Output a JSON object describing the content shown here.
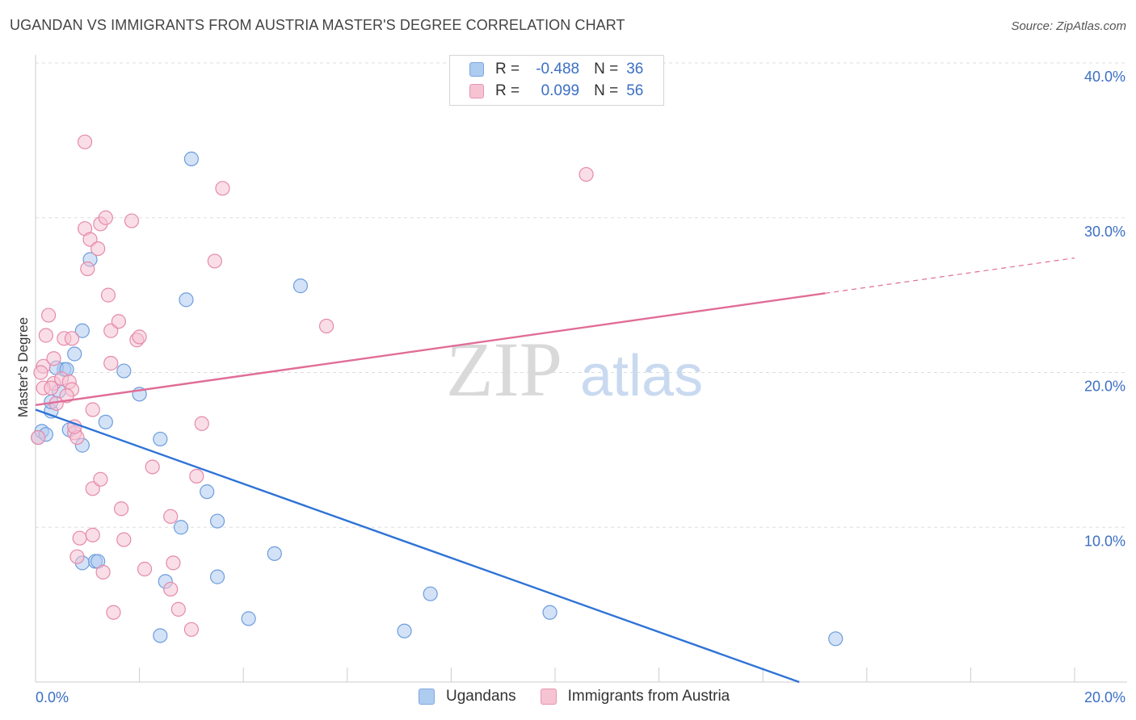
{
  "title": "UGANDAN VS IMMIGRANTS FROM AUSTRIA MASTER'S DEGREE CORRELATION CHART",
  "source": "Source: ZipAtlas.com",
  "watermark": {
    "zip": "ZIP",
    "atlas": "atlas"
  },
  "legend": {
    "rows": [
      {
        "r_label": "R =",
        "r_value": "-0.488",
        "n_label": "N =",
        "n_value": "36",
        "color": "#aecbf0",
        "border": "#7ea8e0"
      },
      {
        "r_label": "R =",
        "r_value": "0.099",
        "n_label": "N =",
        "n_value": "56",
        "color": "#f6c3d3",
        "border": "#e895b2"
      }
    ]
  },
  "colors": {
    "blue_fill": "#aecbf0",
    "blue_stroke": "#6d9ddd",
    "blue_line": "#2f73d6",
    "pink_fill": "#f6c3d3",
    "pink_stroke": "#e58aaa",
    "pink_line": "#e06d97",
    "tick_label": "#3b6fc4",
    "grid": "#dddddd"
  },
  "chart_data": {
    "type": "scatter",
    "title": "UGANDAN VS IMMIGRANTS FROM AUSTRIA MASTER'S DEGREE CORRELATION CHART",
    "xlabel": "",
    "ylabel": "Master's Degree",
    "xlim": [
      0,
      20
    ],
    "ylim": [
      0,
      40
    ],
    "x_tick_labels": [
      "0.0%",
      "20.0%"
    ],
    "y_tick_labels": [
      "10.0%",
      "20.0%",
      "30.0%",
      "40.0%"
    ],
    "y_tick_values": [
      10,
      20,
      30,
      40
    ],
    "grid": true,
    "series": [
      {
        "name": "Ugandans",
        "points": [
          [
            0.05,
            15.8
          ],
          [
            0.12,
            16.2
          ],
          [
            0.3,
            17.5
          ],
          [
            0.3,
            18.1
          ],
          [
            0.45,
            18.8
          ],
          [
            0.55,
            20.2
          ],
          [
            0.65,
            16.3
          ],
          [
            0.75,
            21.2
          ],
          [
            0.9,
            22.7
          ],
          [
            1.05,
            27.3
          ],
          [
            1.15,
            7.8
          ],
          [
            1.35,
            16.8
          ],
          [
            0.9,
            15.3
          ],
          [
            1.7,
            20.1
          ],
          [
            2.0,
            18.6
          ],
          [
            2.4,
            15.7
          ],
          [
            2.4,
            3.0
          ],
          [
            2.8,
            10.0
          ],
          [
            2.9,
            24.7
          ],
          [
            3.0,
            33.8
          ],
          [
            2.5,
            6.5
          ],
          [
            3.3,
            12.3
          ],
          [
            3.5,
            6.8
          ],
          [
            3.5,
            10.4
          ],
          [
            4.1,
            4.1
          ],
          [
            4.6,
            8.3
          ],
          [
            5.1,
            25.6
          ],
          [
            7.1,
            3.3
          ],
          [
            7.6,
            5.7
          ],
          [
            9.9,
            4.5
          ],
          [
            15.4,
            2.8
          ],
          [
            0.9,
            7.7
          ],
          [
            0.4,
            20.3
          ],
          [
            1.2,
            7.8
          ],
          [
            0.6,
            20.2
          ],
          [
            0.2,
            16.0
          ]
        ]
      },
      {
        "name": "Immigrants from Austria",
        "points": [
          [
            0.05,
            15.8
          ],
          [
            0.15,
            20.4
          ],
          [
            0.2,
            22.4
          ],
          [
            0.25,
            23.7
          ],
          [
            0.35,
            20.9
          ],
          [
            0.35,
            19.3
          ],
          [
            0.5,
            19.6
          ],
          [
            0.55,
            22.2
          ],
          [
            0.65,
            19.4
          ],
          [
            0.7,
            18.9
          ],
          [
            0.7,
            22.2
          ],
          [
            0.75,
            16.1
          ],
          [
            0.8,
            15.8
          ],
          [
            0.95,
            29.3
          ],
          [
            0.95,
            34.9
          ],
          [
            1.0,
            26.7
          ],
          [
            1.05,
            28.6
          ],
          [
            1.1,
            17.6
          ],
          [
            1.2,
            28.0
          ],
          [
            1.25,
            29.6
          ],
          [
            1.35,
            30.0
          ],
          [
            1.4,
            25.0
          ],
          [
            1.45,
            22.7
          ],
          [
            1.45,
            20.6
          ],
          [
            1.6,
            23.3
          ],
          [
            1.85,
            29.8
          ],
          [
            1.95,
            22.1
          ],
          [
            2.0,
            22.3
          ],
          [
            2.25,
            13.9
          ],
          [
            1.1,
            12.5
          ],
          [
            1.25,
            13.1
          ],
          [
            1.65,
            11.2
          ],
          [
            1.7,
            9.2
          ],
          [
            0.85,
            9.3
          ],
          [
            1.1,
            9.5
          ],
          [
            0.8,
            8.1
          ],
          [
            1.3,
            7.1
          ],
          [
            2.1,
            7.3
          ],
          [
            2.6,
            10.7
          ],
          [
            2.65,
            7.7
          ],
          [
            2.6,
            6.0
          ],
          [
            2.75,
            4.7
          ],
          [
            3.0,
            3.4
          ],
          [
            3.1,
            13.3
          ],
          [
            3.2,
            16.7
          ],
          [
            3.45,
            27.2
          ],
          [
            3.6,
            31.9
          ],
          [
            5.6,
            23.0
          ],
          [
            10.6,
            32.8
          ],
          [
            0.15,
            19.0
          ],
          [
            0.4,
            18.0
          ],
          [
            1.5,
            4.5
          ],
          [
            0.1,
            20.0
          ],
          [
            0.3,
            19.0
          ],
          [
            0.6,
            18.5
          ],
          [
            0.75,
            16.5
          ]
        ]
      }
    ],
    "trendlines": [
      {
        "series": "Ugandans",
        "x0": 0,
        "y0": 17.6,
        "x1": 14.7,
        "y1": 0.0,
        "dashed_from": null
      },
      {
        "series": "Immigrants from Austria",
        "x0": 0,
        "y0": 17.9,
        "x1": 20.0,
        "y1": 27.4,
        "dashed_from": 15.2
      }
    ]
  }
}
